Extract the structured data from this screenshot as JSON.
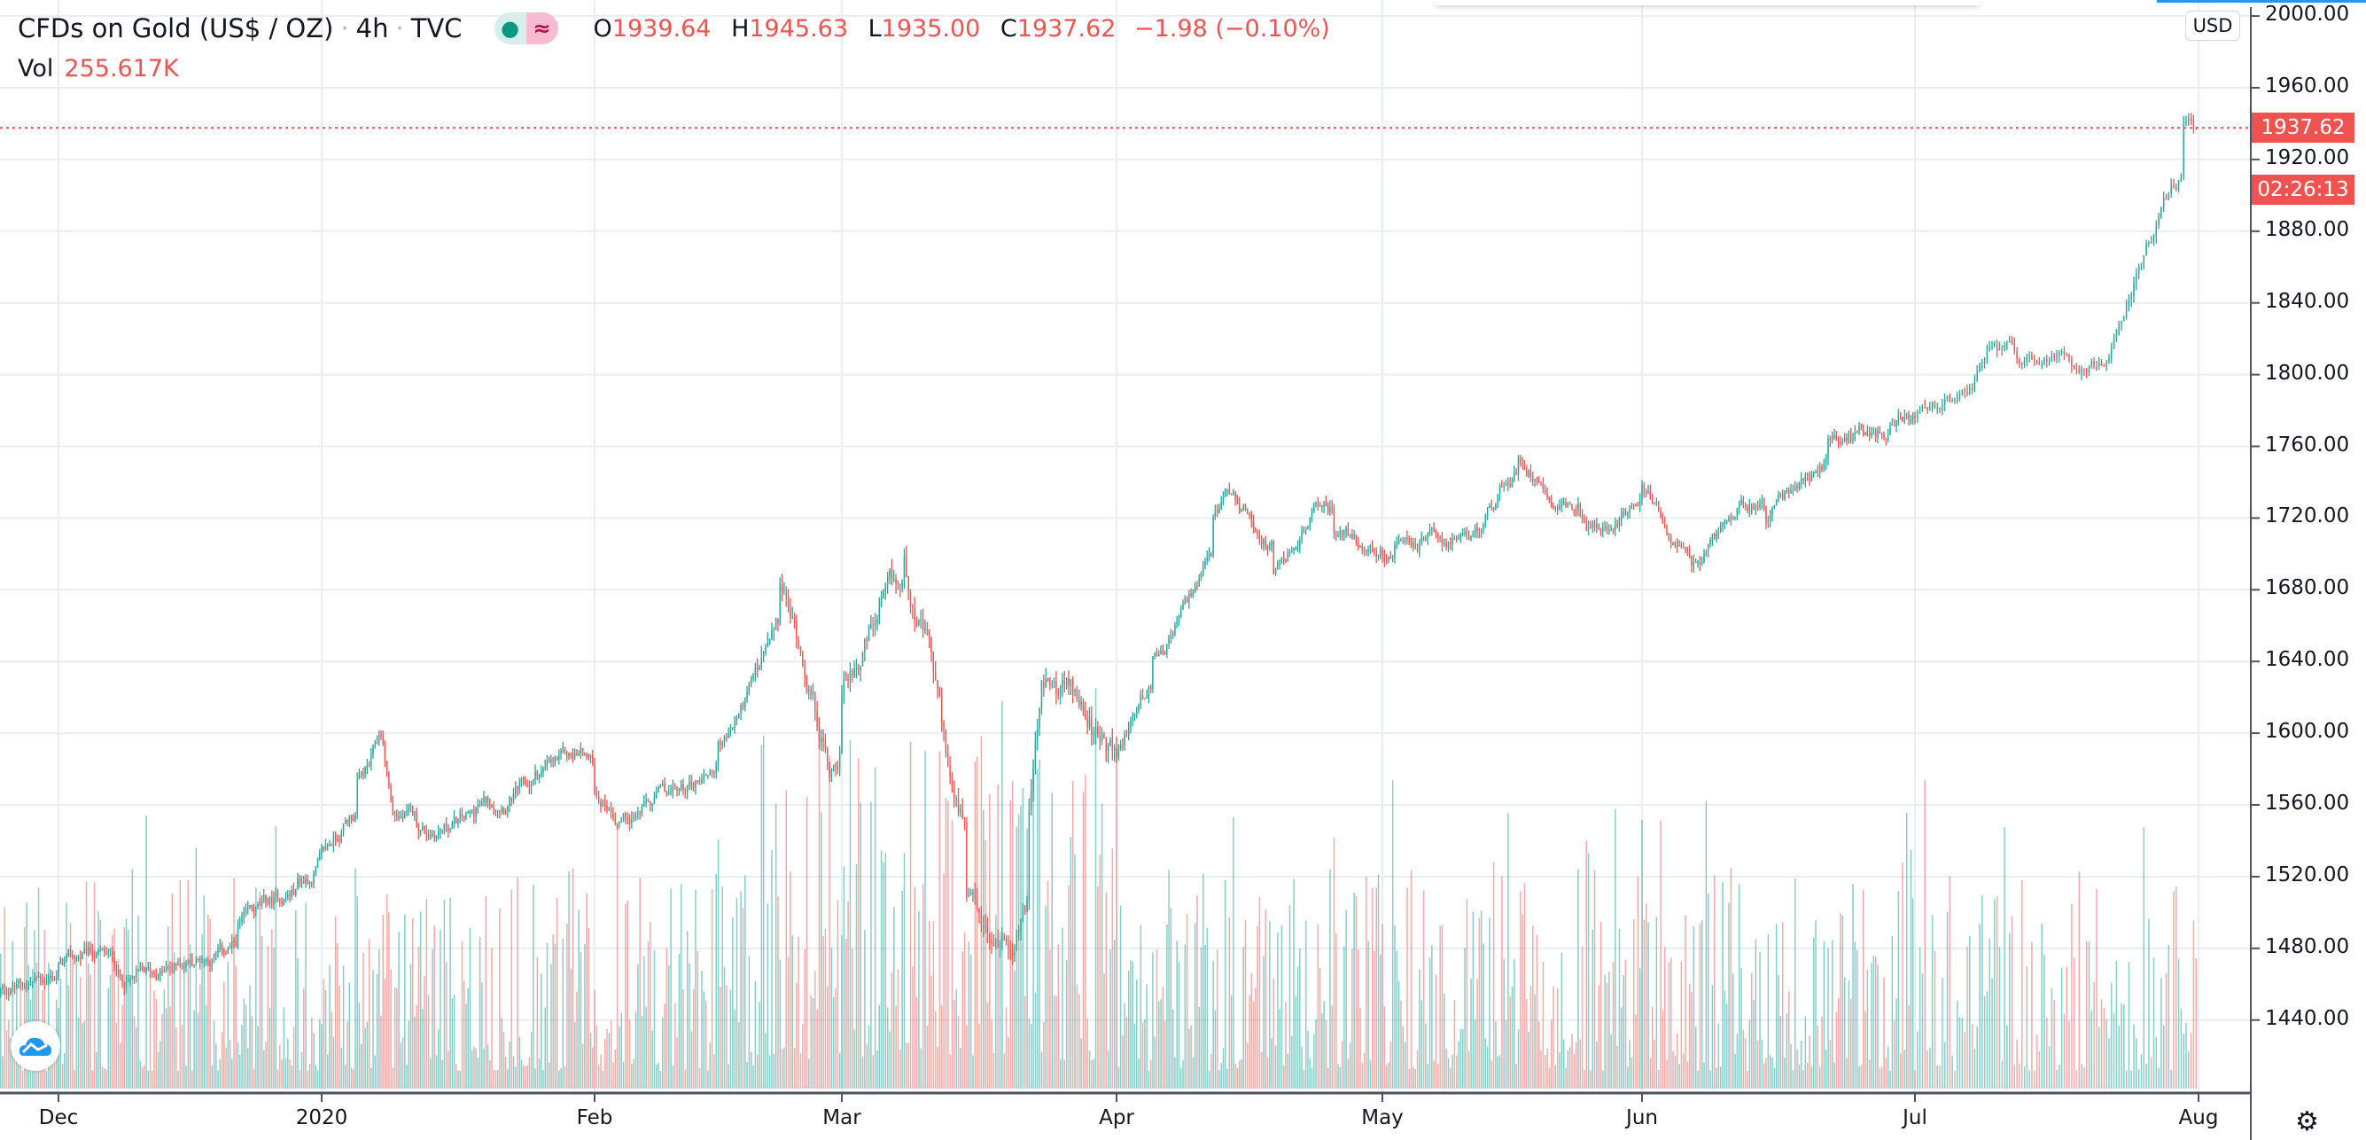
{
  "header": {
    "symbol": "CFDs on Gold (US$ / OZ)",
    "interval": "4h",
    "exchange": "TVC",
    "sep": "·",
    "status_icon": "market-open-dot",
    "delay_icon": "approx-icon",
    "delay_glyph": "≈",
    "o_label": "O",
    "o": "1939.64",
    "h_label": "H",
    "h": "1945.63",
    "l_label": "L",
    "l": "1935.00",
    "c_label": "C",
    "c": "1937.62",
    "change": "−1.98 (−0.10%)"
  },
  "volume": {
    "label": "Vol",
    "value": "255.617K"
  },
  "price_axis": {
    "currency": "USD",
    "ticks": [
      "2000.00",
      "1960.00",
      "1920.00",
      "1880.00",
      "1840.00",
      "1800.00",
      "1760.00",
      "1720.00",
      "1680.00",
      "1640.00",
      "1600.00",
      "1560.00",
      "1520.00",
      "1480.00",
      "1440.00"
    ],
    "last_price": "1937.62",
    "countdown": "02:26:13"
  },
  "time_axis": {
    "ticks": [
      "Dec",
      "2020",
      "Feb",
      "Mar",
      "Apr",
      "May",
      "Jun",
      "Jul",
      "Aug"
    ]
  },
  "colors": {
    "up": "#26a69a",
    "down": "#ef5350",
    "grid": "#e8eef3"
  },
  "chart_data": {
    "type": "candlestick",
    "title": "CFDs on Gold (US$ / OZ) · 4h · TVC",
    "ylim": [
      1420,
      2000
    ],
    "tick_dates": [
      "2019-12-01",
      "2020-01-01",
      "2020-02-01",
      "2020-03-01",
      "2020-04-01",
      "2020-05-01",
      "2020-06-01",
      "2020-07-01",
      "2020-08-01"
    ],
    "close_path": [
      [
        "2019-11-25",
        1455
      ],
      [
        "2019-12-05",
        1477
      ],
      [
        "2019-12-10",
        1462
      ],
      [
        "2019-12-20",
        1478
      ],
      [
        "2019-12-27",
        1510
      ],
      [
        "2019-12-31",
        1520
      ],
      [
        "2020-01-03",
        1550
      ],
      [
        "2020-01-07",
        1580
      ],
      [
        "2020-01-08",
        1600
      ],
      [
        "2020-01-09",
        1555
      ],
      [
        "2020-01-14",
        1545
      ],
      [
        "2020-01-21",
        1560
      ],
      [
        "2020-01-28",
        1580
      ],
      [
        "2020-01-31",
        1588
      ],
      [
        "2020-02-05",
        1555
      ],
      [
        "2020-02-12",
        1567
      ],
      [
        "2020-02-18",
        1600
      ],
      [
        "2020-02-21",
        1645
      ],
      [
        "2020-02-24",
        1680
      ],
      [
        "2020-02-26",
        1640
      ],
      [
        "2020-02-28",
        1580
      ],
      [
        "2020-03-03",
        1640
      ],
      [
        "2020-03-06",
        1675
      ],
      [
        "2020-03-09",
        1690
      ],
      [
        "2020-03-11",
        1645
      ],
      [
        "2020-03-13",
        1560
      ],
      [
        "2020-03-16",
        1500
      ],
      [
        "2020-03-18",
        1478
      ],
      [
        "2020-03-20",
        1490
      ],
      [
        "2020-03-23",
        1560
      ],
      [
        "2020-03-24",
        1625
      ],
      [
        "2020-03-27",
        1620
      ],
      [
        "2020-04-01",
        1585
      ],
      [
        "2020-04-03",
        1620
      ],
      [
        "2020-04-07",
        1650
      ],
      [
        "2020-04-10",
        1685
      ],
      [
        "2020-04-14",
        1728
      ],
      [
        "2020-04-16",
        1720
      ],
      [
        "2020-04-20",
        1685
      ],
      [
        "2020-04-24",
        1730
      ],
      [
        "2020-04-28",
        1710
      ],
      [
        "2020-05-01",
        1700
      ],
      [
        "2020-05-05",
        1705
      ],
      [
        "2020-05-08",
        1708
      ],
      [
        "2020-05-12",
        1702
      ],
      [
        "2020-05-15",
        1740
      ],
      [
        "2020-05-18",
        1755
      ],
      [
        "2020-05-21",
        1735
      ],
      [
        "2020-05-27",
        1712
      ],
      [
        "2020-05-29",
        1730
      ],
      [
        "2020-06-01",
        1738
      ],
      [
        "2020-06-05",
        1690
      ],
      [
        "2020-06-08",
        1695
      ],
      [
        "2020-06-11",
        1735
      ],
      [
        "2020-06-15",
        1722
      ],
      [
        "2020-06-19",
        1745
      ],
      [
        "2020-06-22",
        1760
      ],
      [
        "2020-06-26",
        1770
      ],
      [
        "2020-07-01",
        1775
      ],
      [
        "2020-07-06",
        1785
      ],
      [
        "2020-07-08",
        1810
      ],
      [
        "2020-07-13",
        1803
      ],
      [
        "2020-07-17",
        1808
      ],
      [
        "2020-07-20",
        1815
      ],
      [
        "2020-07-22",
        1860
      ],
      [
        "2020-07-24",
        1900
      ],
      [
        "2020-07-27",
        1937.62
      ]
    ]
  }
}
